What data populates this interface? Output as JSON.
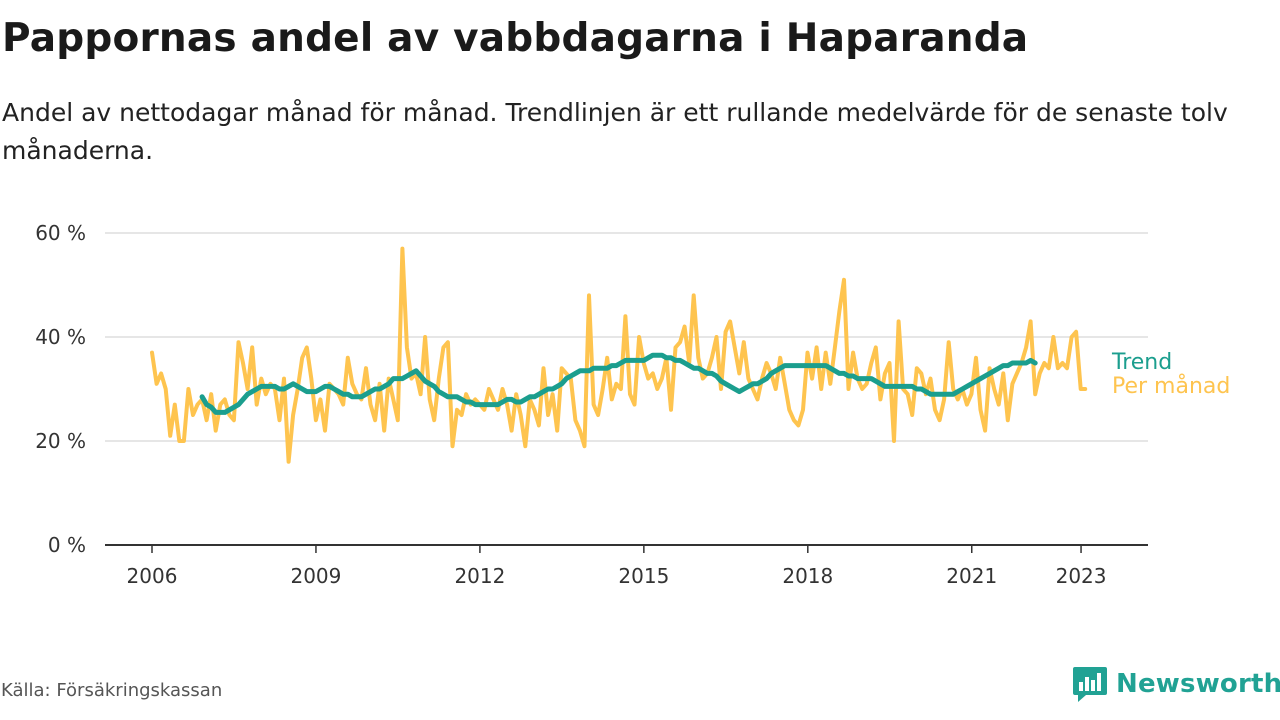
{
  "title": "Pappornas andel av vabbdagarna i Haparanda",
  "subtitle": "Andel av nettodagar månad för månad. Trendlinjen är ett rullande medelvärde för de senaste tolv månaderna.",
  "source": "Källa: Försäkringskassan",
  "brand": {
    "name": "Newsworthy",
    "icon": "bar-chart-speech-bubble-icon"
  },
  "colors": {
    "monthly": "#fec44f",
    "trend": "#1b9e8e",
    "grid": "#dddddd",
    "axis": "#333333"
  },
  "chart_data": {
    "type": "line",
    "x_unit": "year",
    "xlim": [
      2006,
      2023.4
    ],
    "ylim": [
      0,
      60
    ],
    "y_ticks": [
      0,
      20,
      40,
      60
    ],
    "y_tick_labels": [
      "0 %",
      "20 %",
      "40 %",
      "60 %"
    ],
    "x_ticks": [
      2006,
      2009,
      2012,
      2015,
      2018,
      2021,
      2023
    ],
    "x_tick_labels": [
      "2006",
      "2009",
      "2012",
      "2015",
      "2018",
      "2021",
      "2023"
    ],
    "grid": "horizontal",
    "series": [
      {
        "name": "Per månad",
        "x_start": 2006.0,
        "step": 0.0833,
        "values": [
          37,
          31,
          33,
          30,
          21,
          27,
          20,
          20,
          30,
          25,
          27,
          28,
          24,
          29,
          22,
          27,
          28,
          25,
          24,
          39,
          35,
          30,
          38,
          27,
          32,
          29,
          31,
          30,
          24,
          32,
          16,
          25,
          30,
          36,
          38,
          32,
          24,
          28,
          22,
          31,
          30,
          29,
          27,
          36,
          31,
          29,
          28,
          34,
          27,
          24,
          31,
          22,
          32,
          28,
          24,
          57,
          38,
          32,
          33,
          29,
          40,
          28,
          24,
          32,
          38,
          39,
          19,
          26,
          25,
          29,
          27,
          28,
          27,
          26,
          30,
          28,
          26,
          30,
          27,
          22,
          29,
          25,
          19,
          28,
          26,
          23,
          34,
          25,
          29,
          22,
          34,
          33,
          32,
          24,
          22,
          19,
          48,
          27,
          25,
          30,
          36,
          28,
          31,
          30,
          44,
          29,
          27,
          40,
          35,
          32,
          33,
          30,
          32,
          36,
          26,
          38,
          39,
          42,
          35,
          48,
          36,
          32,
          33,
          36,
          40,
          30,
          41,
          43,
          38,
          33,
          39,
          32,
          30,
          28,
          32,
          35,
          33,
          30,
          36,
          31,
          26,
          24,
          23,
          26,
          37,
          32,
          38,
          30,
          37,
          31,
          38,
          45,
          51,
          30,
          37,
          32,
          30,
          31,
          35,
          38,
          28,
          33,
          35,
          20,
          43,
          30,
          29,
          25,
          34,
          33,
          29,
          32,
          26,
          24,
          28,
          39,
          30,
          28,
          30,
          27,
          29,
          36,
          26,
          22,
          34,
          30,
          27,
          33,
          24,
          31,
          33,
          35,
          38,
          43,
          29,
          33,
          35,
          34,
          40,
          34,
          35,
          34,
          40,
          41,
          30,
          30
        ]
      },
      {
        "name": "Trend",
        "x_start": 2006.917,
        "step": 0.0833,
        "values": [
          28.5,
          27,
          26.5,
          25.5,
          25.5,
          25.5,
          26,
          26.5,
          27,
          28,
          29,
          29.5,
          30,
          30.5,
          30.5,
          30.5,
          30.5,
          30,
          30,
          30.5,
          31,
          30.5,
          30,
          29.5,
          29.5,
          29.5,
          30,
          30.5,
          30.5,
          30,
          29.5,
          29,
          29,
          28.5,
          28.5,
          28.5,
          29,
          29.5,
          30,
          30,
          30.5,
          31,
          32,
          32,
          32,
          32.5,
          33,
          33.5,
          32.5,
          31.5,
          31,
          30.5,
          29.5,
          29,
          28.5,
          28.5,
          28.5,
          28,
          27.5,
          27.5,
          27,
          27,
          27,
          27,
          27,
          27,
          27.5,
          28,
          28,
          27.5,
          27.5,
          28,
          28.5,
          28.5,
          29,
          29.5,
          30,
          30,
          30.5,
          31,
          32,
          32.5,
          33,
          33.5,
          33.5,
          33.5,
          34,
          34,
          34,
          34,
          34.5,
          34.5,
          35,
          35.5,
          35.5,
          35.5,
          35.5,
          35.5,
          36,
          36.5,
          36.5,
          36.5,
          36,
          36,
          35.5,
          35.5,
          35,
          34.5,
          34,
          34,
          33.5,
          33,
          33,
          32.5,
          31.5,
          31,
          30.5,
          30,
          29.5,
          30,
          30.5,
          31,
          31,
          31.5,
          32,
          33,
          33.5,
          34,
          34.5,
          34.5,
          34.5,
          34.5,
          34.5,
          34.5,
          34.5,
          34.5,
          34.5,
          34.5,
          34,
          33.5,
          33,
          33,
          32.5,
          32.5,
          32,
          32,
          32,
          32,
          31.5,
          31,
          30.5,
          30.5,
          30.5,
          30.5,
          30.5,
          30.5,
          30.5,
          30,
          30,
          29.5,
          29,
          29,
          29,
          29,
          29,
          29,
          29.5,
          30,
          30.5,
          31,
          31.5,
          32,
          32.5,
          33,
          33.5,
          34,
          34.5,
          34.5,
          35,
          35,
          35,
          35,
          35.5,
          35
        ]
      }
    ]
  }
}
